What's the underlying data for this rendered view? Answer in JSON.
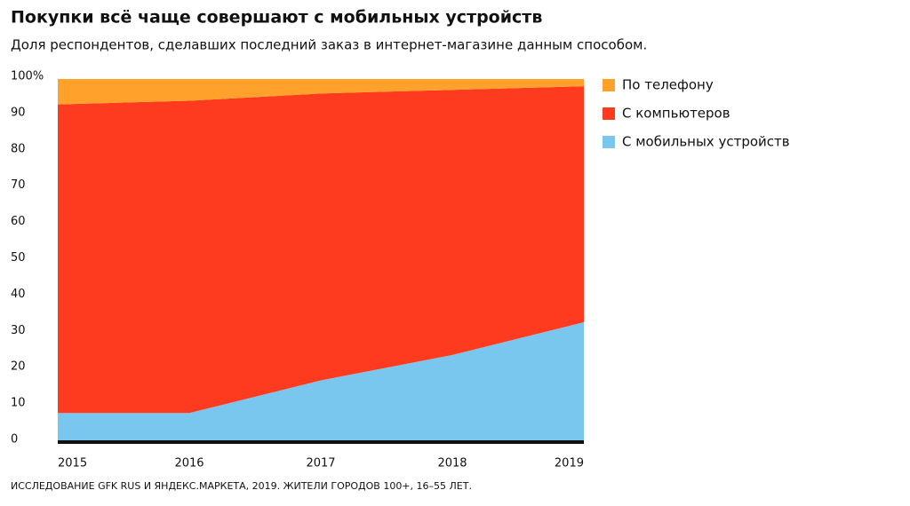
{
  "chart_data": {
    "type": "stacked-area",
    "title": "Покупки всё чаще совершают с мобильных устройств",
    "subtitle": "Доля респондентов, сделавших последний заказ в интернет-магазине данным способом.",
    "source": "ИССЛЕДОВАНИЕ GFK RUS И ЯНДЕКС.МАРКЕТА, 2019. ЖИТЕЛИ ГОРОДОВ 100+, 16–55 ЛЕТ.",
    "categories": [
      "2015",
      "2016",
      "2017",
      "2018",
      "2019"
    ],
    "series": [
      {
        "name": "С мобильных устройств",
        "color": "#79c7ee",
        "values": [
          8,
          8,
          17,
          24,
          33
        ]
      },
      {
        "name": "С компьютеров",
        "color": "#ff3b1f",
        "values": [
          85,
          86,
          79,
          73,
          65
        ]
      },
      {
        "name": "По телефону",
        "color": "#ffa12b",
        "values": [
          7,
          6,
          4,
          3,
          2
        ]
      }
    ],
    "ylim": [
      0,
      100
    ],
    "yticks": [
      0,
      10,
      20,
      30,
      40,
      50,
      60,
      70,
      80,
      90,
      {
        "value": 100,
        "label": "100%"
      }
    ],
    "legend": "right"
  }
}
